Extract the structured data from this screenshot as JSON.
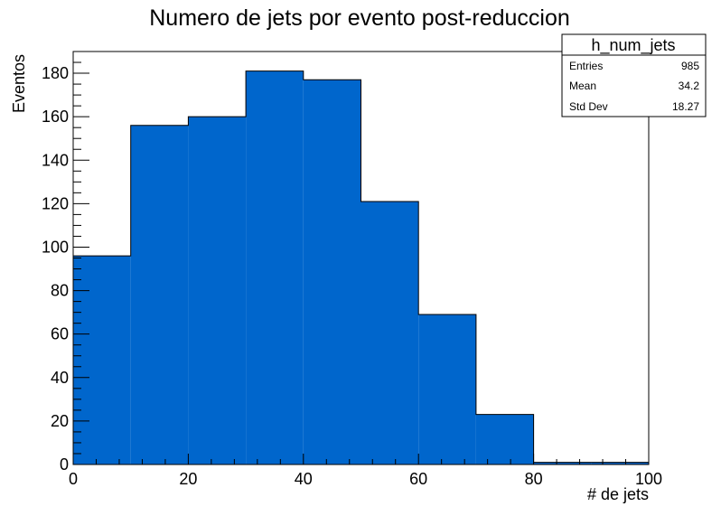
{
  "chart_data": {
    "type": "bar",
    "title": "Numero de jets por evento post-reduccion",
    "xlabel": "# de jets",
    "ylabel": "Eventos",
    "bin_edges": [
      0,
      10,
      20,
      30,
      40,
      50,
      60,
      70,
      80,
      90,
      100
    ],
    "values": [
      96,
      156,
      160,
      181,
      177,
      121,
      69,
      23,
      1,
      1
    ],
    "xlim": [
      0,
      100
    ],
    "ylim": [
      0,
      190
    ],
    "x_ticks": [
      0,
      20,
      40,
      60,
      80,
      100
    ],
    "y_ticks": [
      0,
      20,
      40,
      60,
      80,
      100,
      120,
      140,
      160,
      180
    ],
    "grid": false,
    "fill_color": "#0066cc",
    "line_color": "#000000"
  },
  "stats_box": {
    "name": "h_num_jets",
    "rows": [
      {
        "label": "Entries",
        "value": "985"
      },
      {
        "label": "Mean",
        "value": "34.2"
      },
      {
        "label": "Std Dev",
        "value": "18.27"
      }
    ],
    "placement": "top-right"
  }
}
